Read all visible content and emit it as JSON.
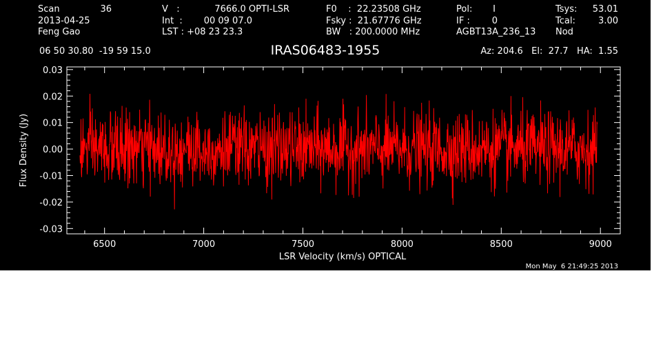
{
  "header": {
    "col1": [
      "Scan",
      "2013-04-25",
      "Feng Gao"
    ],
    "scan_number": "36",
    "col2": [
      "V   :",
      "Int  :",
      "LST : +08 23 23.3"
    ],
    "col2_values": [
      "7666.0 OPTI-LSR",
      "00 09 07.0"
    ],
    "col3": [
      "F0    :  22.23508 GHz",
      "Fsky :  21.67776 GHz",
      "BW   : 200.0000 MHz"
    ],
    "col4": [
      "Pol:",
      "IF :",
      "AGBT13A_236_13"
    ],
    "col4_values": [
      "I",
      "0"
    ],
    "col5": [
      "Tsys:",
      "Tcal:",
      "Nod"
    ],
    "col5_values": [
      "53.01",
      "3.00"
    ],
    "coords": "06 50 30.80  -19 59 15.0",
    "source": "IRAS06483-1955",
    "pointing": "Az: 204.6   El:  27.7   HA:  1.55"
  },
  "footer_timestamp": "Mon May  6 21:49:25 2013",
  "colors": {
    "background": "#000000",
    "axes": "#ffffff",
    "series": "#ff0000"
  },
  "chart_data": {
    "type": "line",
    "title": "IRAS06483-1955",
    "xlabel": "LSR Velocity (km/s) OPTICAL",
    "ylabel": "Flux Density (Jy)",
    "xlim": [
      6310,
      9100
    ],
    "ylim": [
      -0.032,
      0.031
    ],
    "xticks": [
      6500,
      7000,
      7500,
      8000,
      8500,
      9000
    ],
    "xtick_labels": [
      "6500",
      "7000",
      "7500",
      "8000",
      "8500",
      "9000"
    ],
    "yticks": [
      -0.03,
      -0.02,
      -0.01,
      0.0,
      0.01,
      0.02,
      0.03
    ],
    "ytick_labels": [
      "-0.03",
      "-0.02",
      "-0.01",
      "0.00",
      "0.01",
      "0.02",
      "0.03"
    ],
    "grid": false,
    "series": [
      {
        "x_start": 6376,
        "x_end": 8984,
        "n_points": 1500,
        "noise_rms_jy": 0.007,
        "mean_jy": 0.0,
        "peak_max_jy": 0.025,
        "peak_min_jy": -0.026,
        "color": "#ff0000"
      }
    ]
  }
}
